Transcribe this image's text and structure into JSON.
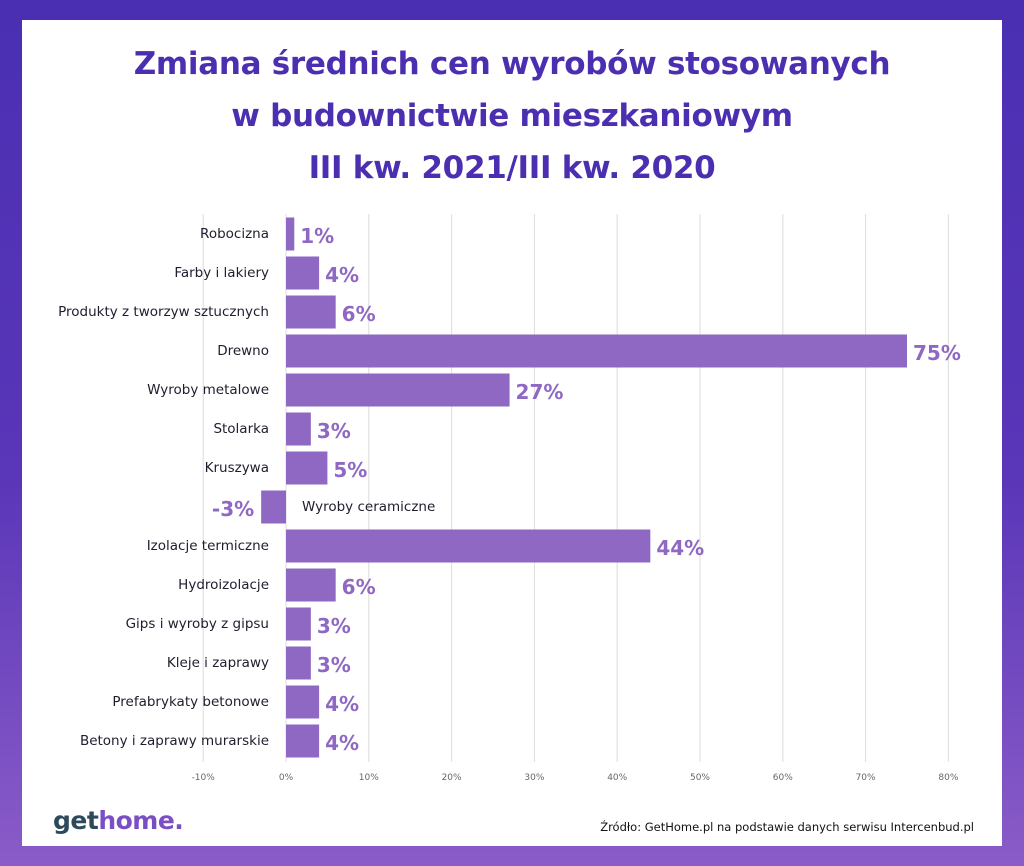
{
  "title_lines": [
    "Zmiana średnich cen wyrobów stosowanych",
    "w budownictwie mieszkaniowym",
    "III kw. 2021/III kw. 2020"
  ],
  "chart_data": {
    "type": "bar",
    "orientation": "horizontal",
    "categories": [
      "Robocizna",
      "Farby i lakiery",
      "Produkty z tworzyw sztucznych",
      "Drewno",
      "Wyroby metalowe",
      "Stolarka",
      "Kruszywa",
      "Wyroby ceramiczne",
      "Izolacje termiczne",
      "Hydroizolacje",
      "Gips i wyroby z gipsu",
      "Kleje i zaprawy",
      "Prefabrykaty betonowe",
      "Betony i zaprawy murarskie"
    ],
    "values": [
      1,
      4,
      6,
      75,
      27,
      3,
      5,
      -3,
      44,
      6,
      3,
      3,
      4,
      4
    ],
    "value_labels": [
      "1%",
      "4%",
      "6%",
      "75%",
      "27%",
      "3%",
      "5%",
      "-3%",
      "44%",
      "6%",
      "3%",
      "3%",
      "4%",
      "4%"
    ],
    "xlim": [
      -10,
      80
    ],
    "xticks": [
      -10,
      0,
      10,
      20,
      30,
      40,
      50,
      60,
      70,
      80
    ],
    "xtick_labels": [
      "-10%",
      "0%",
      "10%",
      "20%",
      "30%",
      "40%",
      "50%",
      "60%",
      "70%",
      "80%"
    ],
    "grid": true,
    "bar_color": "#8e68c2",
    "label_color": "#8e68c2"
  },
  "logo": {
    "part1": "get",
    "part2": "home."
  },
  "source": "Źródło: GetHome.pl na podstawie danych serwisu Intercenbud.pl"
}
